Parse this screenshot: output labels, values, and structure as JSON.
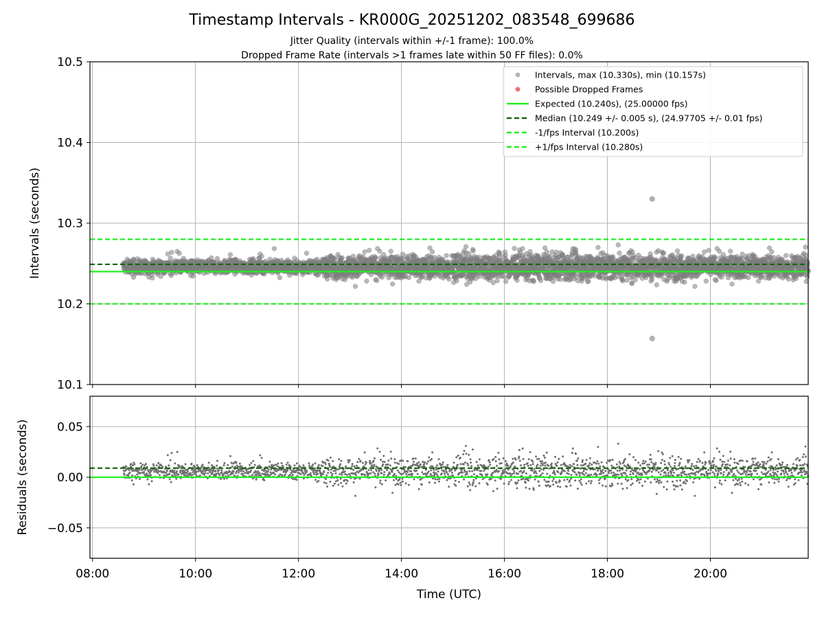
{
  "chart_data": {
    "type": "scatter",
    "title": "Timestamp Intervals - KR000G_20251202_083548_699686",
    "subtitles": [
      "Jitter Quality (intervals within +/-1 frame): 100.0%",
      "Dropped Frame Rate (intervals >1 frames late within 50 FF files): 0.0%"
    ],
    "xlabel": "Time (UTC)",
    "x_ticks": [
      "08:00",
      "10:00",
      "12:00",
      "14:00",
      "16:00",
      "18:00",
      "20:00"
    ],
    "x_range_hours": [
      7.95,
      21.9
    ],
    "data_start_hour": 8.6,
    "grid": true,
    "top_panel": {
      "ylabel": "Intervals (seconds)",
      "ylim": [
        10.1,
        10.5
      ],
      "y_ticks": [
        "10.1",
        "10.2",
        "10.3",
        "10.4",
        "10.5"
      ],
      "expected": 10.24,
      "median": 10.249,
      "minus_fps": 10.2,
      "plus_fps": 10.28,
      "outliers": [
        {
          "x": 18.87,
          "y": 10.33
        },
        {
          "x": 18.87,
          "y": 10.157
        }
      ]
    },
    "bottom_panel": {
      "ylabel": "Residuals (seconds)",
      "ylim": [
        -0.08,
        0.08
      ],
      "y_ticks": [
        "−0.05",
        "0.00",
        "0.05"
      ],
      "expected": 0.0,
      "median": 0.009
    },
    "series": [
      {
        "name": "Intervals, max (10.330s), min (10.157s)",
        "color": "#808080",
        "kind": "scatter"
      },
      {
        "name": "Possible Dropped Frames",
        "color": "#f06060",
        "kind": "scatter"
      },
      {
        "name": "Expected (10.240s), (25.00000 fps)",
        "color": "#22ee22",
        "kind": "solid"
      },
      {
        "name": "Median (10.249 +/- 0.005 s), (24.97705 +/- 0.01 fps)",
        "color": "#116611",
        "kind": "dashed"
      },
      {
        "name": "-1/fps Interval (10.200s)",
        "color": "#22ee22",
        "kind": "dashed"
      },
      {
        "name": "+1/fps Interval (10.280s)",
        "color": "#22ee22",
        "kind": "dashed"
      }
    ]
  }
}
